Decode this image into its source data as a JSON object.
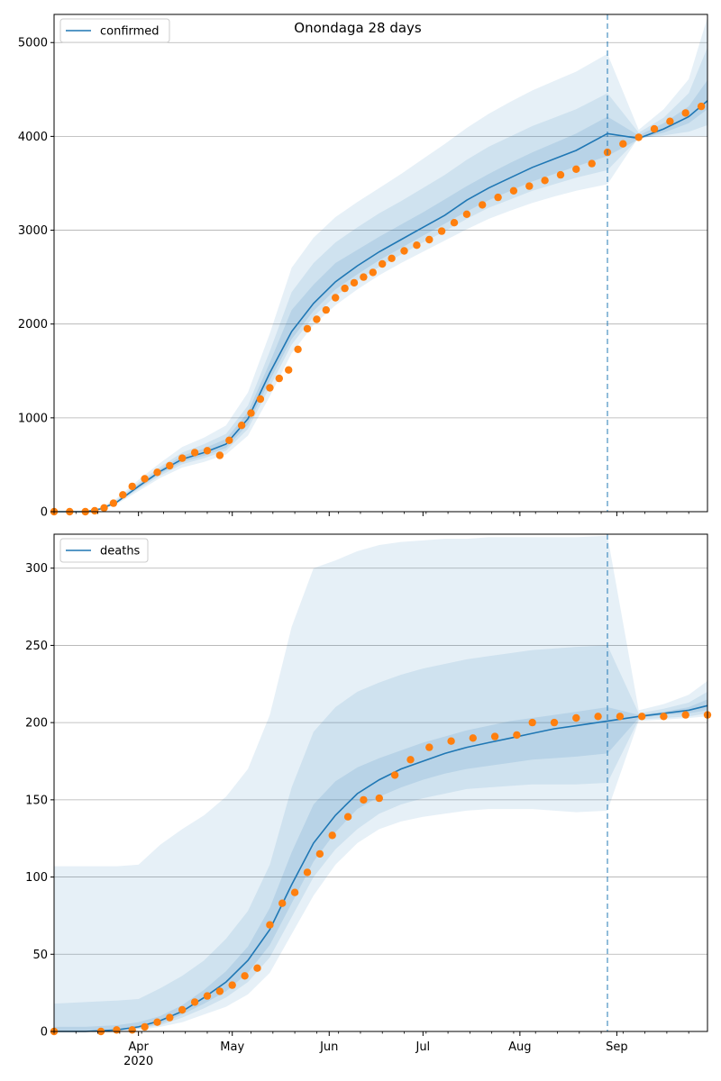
{
  "title": "Onondaga 28 days",
  "colors": {
    "model": "#1f77b4",
    "observed": "#ff7f0e",
    "band": "#1f77b4",
    "grid": "#b0b0b0",
    "cutoff": "#1f77b4"
  },
  "x_axis": {
    "tick_labels": [
      "Apr",
      "May",
      "Jun",
      "Jul",
      "Aug",
      "Sep"
    ],
    "year_label": "2020"
  },
  "chart_data": [
    {
      "type": "line",
      "legend": "confirmed",
      "legend_position": "top-left",
      "grid": "horizontal",
      "xlim": [
        "2020-03-05",
        "2020-09-30"
      ],
      "ylim": [
        0,
        5300
      ],
      "yticks": [
        0,
        1000,
        2000,
        3000,
        4000,
        5000
      ],
      "cutoff_date": "2020-08-29",
      "model_line": {
        "x": [
          "2020-03-05",
          "2020-03-15",
          "2020-03-20",
          "2020-03-25",
          "2020-04-01",
          "2020-04-08",
          "2020-04-15",
          "2020-04-22",
          "2020-04-29",
          "2020-05-06",
          "2020-05-13",
          "2020-05-20",
          "2020-05-27",
          "2020-06-03",
          "2020-06-10",
          "2020-06-17",
          "2020-06-24",
          "2020-07-01",
          "2020-07-08",
          "2020-07-15",
          "2020-07-22",
          "2020-07-29",
          "2020-08-05",
          "2020-08-12",
          "2020-08-19",
          "2020-08-29",
          "2020-09-08",
          "2020-09-16",
          "2020-09-24",
          "2020-09-30"
        ],
        "y": [
          0,
          0,
          30,
          100,
          270,
          430,
          560,
          630,
          720,
          990,
          1480,
          1920,
          2220,
          2450,
          2620,
          2770,
          2900,
          3030,
          3160,
          3320,
          3450,
          3560,
          3670,
          3760,
          3850,
          4030,
          3980,
          4080,
          4210,
          4380
        ]
      },
      "bands": [
        {
          "lower": [
            0,
            0,
            20,
            80,
            220,
            360,
            470,
            530,
            610,
            810,
            1230,
            1690,
            1990,
            2200,
            2370,
            2520,
            2650,
            2770,
            2890,
            3010,
            3120,
            3210,
            3290,
            3360,
            3420,
            3490,
            3990,
            4000,
            4000,
            4000
          ],
          "upper": [
            0,
            0,
            45,
            140,
            340,
            520,
            690,
            790,
            920,
            1270,
            1900,
            2600,
            2920,
            3140,
            3300,
            3450,
            3600,
            3760,
            3920,
            4090,
            4240,
            4370,
            4490,
            4590,
            4690,
            4880,
            4070,
            4290,
            4610,
            5270
          ]
        },
        {
          "lower": [
            0,
            0,
            24,
            90,
            240,
            385,
            505,
            570,
            650,
            880,
            1330,
            1780,
            2080,
            2300,
            2460,
            2610,
            2740,
            2870,
            2990,
            3120,
            3240,
            3330,
            3420,
            3490,
            3560,
            3640,
            3980,
            4010,
            4050,
            4120
          ],
          "upper": [
            0,
            0,
            40,
            125,
            310,
            480,
            630,
            720,
            830,
            1130,
            1710,
            2340,
            2650,
            2870,
            3030,
            3180,
            3310,
            3450,
            3590,
            3750,
            3890,
            4000,
            4110,
            4200,
            4290,
            4460,
            4040,
            4200,
            4460,
            4950
          ]
        },
        {
          "lower": [
            0,
            0,
            27,
            95,
            255,
            405,
            530,
            595,
            680,
            930,
            1400,
            1840,
            2140,
            2370,
            2530,
            2680,
            2810,
            2940,
            3070,
            3200,
            3320,
            3420,
            3520,
            3600,
            3680,
            3790,
            3970,
            4040,
            4140,
            4290
          ],
          "upper": [
            0,
            0,
            35,
            112,
            290,
            455,
            595,
            675,
            775,
            1060,
            1590,
            2150,
            2420,
            2650,
            2790,
            2930,
            3060,
            3190,
            3330,
            3470,
            3600,
            3720,
            3830,
            3930,
            4030,
            4210,
            4010,
            4140,
            4320,
            4600
          ]
        }
      ],
      "observed": {
        "x": [
          "2020-03-05",
          "2020-03-10",
          "2020-03-15",
          "2020-03-18",
          "2020-03-21",
          "2020-03-24",
          "2020-03-27",
          "2020-03-30",
          "2020-04-03",
          "2020-04-07",
          "2020-04-11",
          "2020-04-15",
          "2020-04-19",
          "2020-04-23",
          "2020-04-27",
          "2020-04-30",
          "2020-05-04",
          "2020-05-07",
          "2020-05-10",
          "2020-05-13",
          "2020-05-16",
          "2020-05-19",
          "2020-05-22",
          "2020-05-25",
          "2020-05-28",
          "2020-05-31",
          "2020-06-03",
          "2020-06-06",
          "2020-06-09",
          "2020-06-12",
          "2020-06-15",
          "2020-06-18",
          "2020-06-21",
          "2020-06-25",
          "2020-06-29",
          "2020-07-03",
          "2020-07-07",
          "2020-07-11",
          "2020-07-15",
          "2020-07-20",
          "2020-07-25",
          "2020-07-30",
          "2020-08-04",
          "2020-08-09",
          "2020-08-14",
          "2020-08-19",
          "2020-08-24",
          "2020-08-29",
          "2020-09-03",
          "2020-09-08",
          "2020-09-13",
          "2020-09-18",
          "2020-09-23",
          "2020-09-28"
        ],
        "y": [
          0,
          0,
          0,
          10,
          40,
          90,
          180,
          270,
          350,
          420,
          490,
          570,
          630,
          650,
          600,
          760,
          920,
          1050,
          1200,
          1320,
          1420,
          1510,
          1730,
          1950,
          2050,
          2150,
          2280,
          2380,
          2440,
          2500,
          2550,
          2640,
          2700,
          2780,
          2840,
          2900,
          2990,
          3080,
          3170,
          3270,
          3350,
          3420,
          3470,
          3530,
          3590,
          3650,
          3710,
          3830,
          3920,
          3990,
          4080,
          4160,
          4250,
          4320
        ]
      }
    },
    {
      "type": "line",
      "legend": "deaths",
      "legend_position": "top-left",
      "grid": "horizontal",
      "xlim": [
        "2020-03-05",
        "2020-09-30"
      ],
      "ylim": [
        0,
        322
      ],
      "yticks": [
        0,
        50,
        100,
        150,
        200,
        250,
        300
      ],
      "cutoff_date": "2020-08-29",
      "model_line": {
        "x": [
          "2020-03-05",
          "2020-03-15",
          "2020-03-25",
          "2020-04-01",
          "2020-04-08",
          "2020-04-15",
          "2020-04-22",
          "2020-04-29",
          "2020-05-06",
          "2020-05-13",
          "2020-05-20",
          "2020-05-27",
          "2020-06-03",
          "2020-06-10",
          "2020-06-17",
          "2020-06-24",
          "2020-07-01",
          "2020-07-08",
          "2020-07-15",
          "2020-07-22",
          "2020-07-29",
          "2020-08-05",
          "2020-08-12",
          "2020-08-19",
          "2020-08-29",
          "2020-09-08",
          "2020-09-16",
          "2020-09-24",
          "2020-09-30"
        ],
        "y": [
          0,
          0,
          1,
          3,
          7,
          13,
          22,
          32,
          46,
          66,
          95,
          122,
          140,
          154,
          163,
          170,
          175,
          180,
          184,
          187,
          190,
          193,
          196,
          198,
          201,
          204,
          206,
          208,
          211
        ]
      },
      "bands": [
        {
          "lower": [
            0,
            0,
            0,
            1,
            3,
            6,
            11,
            16,
            24,
            38,
            63,
            88,
            108,
            122,
            131,
            136,
            139,
            141,
            143,
            144,
            144,
            144,
            143,
            142,
            143,
            201,
            202,
            203,
            204
          ],
          "upper": [
            107,
            107,
            107,
            108,
            121,
            131,
            140,
            152,
            170,
            205,
            262,
            300,
            305,
            311,
            315,
            317,
            318,
            319,
            319,
            320,
            320,
            320,
            320,
            320,
            321,
            208,
            212,
            218,
            227
          ]
        },
        {
          "lower": [
            0,
            0,
            0,
            2,
            4,
            9,
            15,
            22,
            32,
            48,
            74,
            100,
            118,
            131,
            141,
            147,
            151,
            154,
            157,
            158,
            159,
            160,
            160,
            160,
            161,
            202,
            203,
            204,
            206
          ],
          "upper": [
            18,
            19,
            20,
            21,
            28,
            36,
            46,
            60,
            78,
            108,
            158,
            194,
            210,
            220,
            226,
            231,
            235,
            238,
            241,
            243,
            245,
            247,
            248,
            249,
            250,
            206,
            209,
            213,
            220
          ]
        },
        {
          "lower": [
            0,
            0,
            1,
            2,
            5,
            11,
            18,
            26,
            38,
            56,
            83,
            110,
            129,
            144,
            152,
            158,
            163,
            167,
            170,
            172,
            174,
            176,
            177,
            178,
            180,
            203,
            205,
            206,
            208
          ],
          "upper": [
            3,
            3,
            4,
            6,
            10,
            17,
            27,
            39,
            55,
            80,
            116,
            147,
            162,
            171,
            177,
            182,
            187,
            191,
            195,
            198,
            201,
            203,
            205,
            207,
            210,
            205,
            207,
            210,
            215
          ]
        }
      ],
      "observed": {
        "x": [
          "2020-03-05",
          "2020-03-20",
          "2020-03-25",
          "2020-03-30",
          "2020-04-03",
          "2020-04-07",
          "2020-04-11",
          "2020-04-15",
          "2020-04-19",
          "2020-04-23",
          "2020-04-27",
          "2020-05-01",
          "2020-05-05",
          "2020-05-09",
          "2020-05-13",
          "2020-05-17",
          "2020-05-21",
          "2020-05-25",
          "2020-05-29",
          "2020-06-02",
          "2020-06-07",
          "2020-06-12",
          "2020-06-17",
          "2020-06-22",
          "2020-06-27",
          "2020-07-03",
          "2020-07-10",
          "2020-07-17",
          "2020-07-24",
          "2020-07-31",
          "2020-08-05",
          "2020-08-12",
          "2020-08-19",
          "2020-08-26",
          "2020-09-02",
          "2020-09-09",
          "2020-09-16",
          "2020-09-23",
          "2020-09-30"
        ],
        "y": [
          0,
          0,
          1,
          1,
          3,
          6,
          9,
          14,
          19,
          23,
          26,
          30,
          36,
          41,
          69,
          83,
          90,
          103,
          115,
          127,
          139,
          150,
          151,
          166,
          176,
          184,
          188,
          190,
          191,
          192,
          200,
          200,
          203,
          204,
          204,
          204,
          204,
          205,
          205
        ]
      }
    }
  ]
}
